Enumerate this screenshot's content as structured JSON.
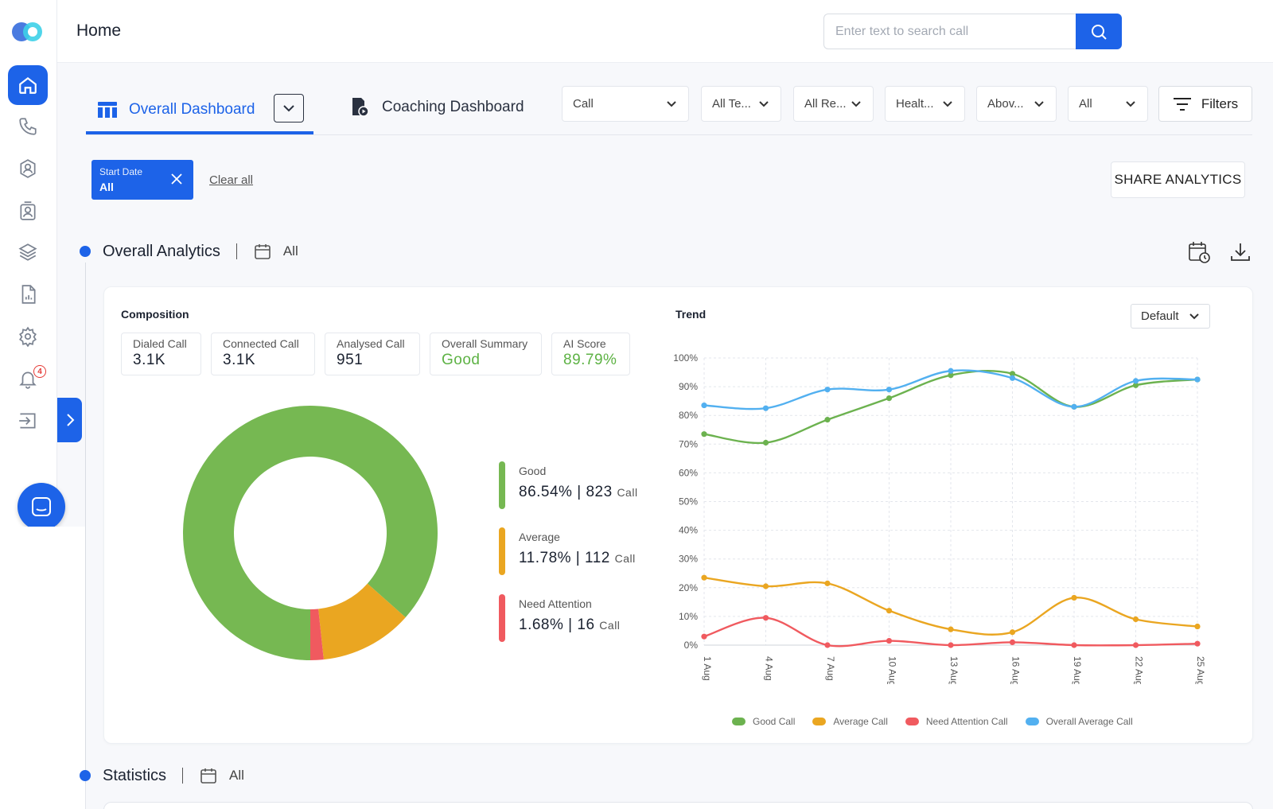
{
  "header": {
    "title": "Home",
    "search_placeholder": "Enter text to search call"
  },
  "sidebar": {
    "notification_count": "4",
    "items": [
      "home-icon",
      "phone-icon",
      "agent-icon",
      "contact-icon",
      "layers-icon",
      "report-icon",
      "gear-icon",
      "bell-icon",
      "logout-icon"
    ]
  },
  "tabs": {
    "overall": "Overall Dashboard",
    "coaching": "Coaching Dashboard"
  },
  "filters": {
    "dropdowns": [
      "Call",
      "All Te...",
      "All Re...",
      "Healt...",
      "Abov...",
      "All"
    ],
    "filters_label": "Filters"
  },
  "chips": {
    "start_date_label": "Start Date",
    "start_date_value": "All",
    "clear_all": "Clear all",
    "share": "SHARE ANALYTICS"
  },
  "overall_analytics": {
    "title": "Overall Analytics",
    "period": "All"
  },
  "composition": {
    "title": "Composition",
    "metrics": [
      {
        "label": "Dialed Call",
        "value": "3.1K"
      },
      {
        "label": "Connected Call",
        "value": "3.1K"
      },
      {
        "label": "Analysed Call",
        "value": "951"
      },
      {
        "label": "Overall Summary",
        "value": "Good"
      },
      {
        "label": "AI Score",
        "value": "89.79%"
      }
    ],
    "legend": [
      {
        "name": "Good",
        "pct": "86.54%",
        "count": "823",
        "unit": "Call",
        "color": "#76b852"
      },
      {
        "name": "Average",
        "pct": "11.78%",
        "count": "112",
        "unit": "Call",
        "color": "#eaa621"
      },
      {
        "name": "Need Attention",
        "pct": "1.68%",
        "count": "16",
        "unit": "Call",
        "color": "#f05a5f"
      }
    ]
  },
  "trend": {
    "title": "Trend",
    "dropdown": "Default"
  },
  "statistics": {
    "title": "Statistics",
    "period": "All"
  },
  "chart_data": [
    {
      "type": "pie",
      "labels": [
        "Good",
        "Average",
        "Need Attention"
      ],
      "values": [
        86.54,
        11.78,
        1.68
      ],
      "colors": [
        "#76b852",
        "#eaa621",
        "#f05a5f"
      ]
    },
    {
      "type": "line",
      "x": [
        "1 Aug",
        "4 Aug",
        "7 Aug",
        "10 Aug",
        "13 Aug",
        "16 Aug",
        "19 Aug",
        "22 Aug",
        "25 Aug"
      ],
      "yticks": [
        "0%",
        "10%",
        "20%",
        "30%",
        "40%",
        "50%",
        "60%",
        "70%",
        "80%",
        "90%",
        "100%"
      ],
      "ylim": [
        0,
        100
      ],
      "grid": true,
      "legend_position": "bottom",
      "series": [
        {
          "name": "Good Call",
          "color": "#6cb24f",
          "values": [
            73.5,
            70.5,
            78.5,
            86,
            94,
            94.5,
            83,
            90.5,
            92.5
          ]
        },
        {
          "name": "Average Call",
          "color": "#eaa621",
          "values": [
            23.5,
            20.5,
            21.5,
            12,
            5.5,
            4.5,
            16.5,
            9,
            6.5
          ]
        },
        {
          "name": "Need Attention Call",
          "color": "#f05a5f",
          "values": [
            3,
            9.5,
            0,
            1.5,
            0,
            1,
            0,
            0,
            0.5
          ]
        },
        {
          "name": "Overall Average Call",
          "color": "#52b0f0",
          "values": [
            83.5,
            82.5,
            89,
            89,
            95.5,
            93,
            83,
            92,
            92.5
          ]
        }
      ]
    }
  ]
}
